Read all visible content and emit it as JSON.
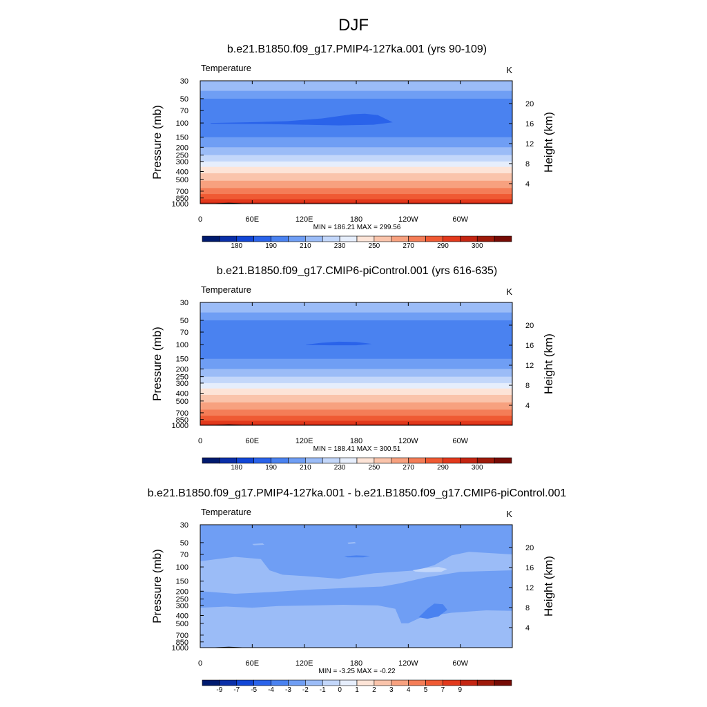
{
  "main_title": "DJF",
  "colors": {
    "temperature_scale": [
      "#001a6e",
      "#0a2fa8",
      "#1246d6",
      "#2a63ea",
      "#4a82f0",
      "#6f9ef4",
      "#9bbcf7",
      "#c3d7fa",
      "#e6eefc",
      "#fde4d7",
      "#fac4ab",
      "#f7a17f",
      "#f47d57",
      "#ef5a33",
      "#e2391c",
      "#c42512",
      "#9e1a0a",
      "#760b05"
    ],
    "difference_scale": [
      "#001a6e",
      "#0a2fa8",
      "#1246d6",
      "#2a63ea",
      "#4a82f0",
      "#6f9ef4",
      "#9bbcf7",
      "#c3d7fa",
      "#e6eefc",
      "#fde4d7",
      "#fac4ab",
      "#f7a17f",
      "#f47d57",
      "#ef5a33",
      "#e2391c",
      "#c42512",
      "#9e1a0a",
      "#760b05"
    ],
    "topography": "#000000"
  },
  "chart_data": [
    {
      "type": "heatmap",
      "title": "b.e21.B1850.f09_g17.PMIP4-127ka.001 (yrs 90-109)",
      "left_label": "Temperature",
      "right_label": "K",
      "xlabel": "",
      "ylabel": "Pressure (mb)",
      "y2label": "Height (km)",
      "x_ticks": [
        "0",
        "60E",
        "120E",
        "180",
        "120W",
        "60W"
      ],
      "x_tick_values": [
        0,
        60,
        120,
        180,
        240,
        300
      ],
      "xlim": [
        0,
        360
      ],
      "y_ticks": [
        "30",
        "50",
        "70",
        "100",
        "150",
        "200",
        "250",
        "300",
        "400",
        "500",
        "700",
        "850",
        "1000"
      ],
      "y_tick_values": [
        30,
        50,
        70,
        100,
        150,
        200,
        250,
        300,
        400,
        500,
        700,
        850,
        1000
      ],
      "ylim": [
        30,
        1000
      ],
      "y2_ticks": [
        "20",
        "16",
        "12",
        "8",
        "4"
      ],
      "y2_tick_values": [
        20,
        16,
        12,
        8,
        4
      ],
      "stats": "MIN = 186.21  MAX = 299.56",
      "min": 186.21,
      "max": 299.56,
      "colorbar_labels": [
        "180",
        "190",
        "210",
        "230",
        "250",
        "270",
        "290",
        "300"
      ],
      "bands": [
        {
          "p": 30,
          "c": 6
        },
        {
          "p": 40,
          "c": 5
        },
        {
          "p": 50,
          "c": 4
        },
        {
          "p": 150,
          "c": 5
        },
        {
          "p": 200,
          "c": 6
        },
        {
          "p": 250,
          "c": 7
        },
        {
          "p": 300,
          "c": 8
        },
        {
          "p": 350,
          "c": 9
        },
        {
          "p": 420,
          "c": 10
        },
        {
          "p": 520,
          "c": 11
        },
        {
          "p": 640,
          "c": 12
        },
        {
          "p": 760,
          "c": 13
        },
        {
          "p": 880,
          "c": 14
        },
        {
          "p": 960,
          "c": 15
        }
      ],
      "blobs": [
        {
          "pts": [
            [
              12,
              100
            ],
            [
              55,
              98
            ],
            [
              100,
              95
            ],
            [
              140,
              88
            ],
            [
              175,
              78
            ],
            [
              190,
              77
            ],
            [
              205,
              80
            ],
            [
              222,
              98
            ],
            [
              200,
              105
            ],
            [
              160,
              107
            ],
            [
              120,
              105
            ],
            [
              70,
              103
            ],
            [
              12,
              102
            ]
          ],
          "c": 3
        }
      ],
      "topo": [
        [
          0,
          1000
        ],
        [
          10,
          998
        ],
        [
          22,
          985
        ],
        [
          33,
          976
        ],
        [
          44,
          985
        ],
        [
          55,
          998
        ],
        [
          130,
          997
        ],
        [
          200,
          996
        ],
        [
          240,
          998
        ],
        [
          290,
          992
        ],
        [
          300,
          990
        ],
        [
          310,
          996
        ],
        [
          360,
          1000
        ]
      ]
    },
    {
      "type": "heatmap",
      "title": "b.e21.B1850.f09_g17.CMIP6-piControl.001 (yrs 616-635)",
      "left_label": "Temperature",
      "right_label": "K",
      "xlabel": "",
      "ylabel": "Pressure (mb)",
      "y2label": "Height (km)",
      "x_ticks": [
        "0",
        "60E",
        "120E",
        "180",
        "120W",
        "60W"
      ],
      "x_tick_values": [
        0,
        60,
        120,
        180,
        240,
        300
      ],
      "xlim": [
        0,
        360
      ],
      "y_ticks": [
        "30",
        "50",
        "70",
        "100",
        "150",
        "200",
        "250",
        "300",
        "400",
        "500",
        "700",
        "850",
        "1000"
      ],
      "y_tick_values": [
        30,
        50,
        70,
        100,
        150,
        200,
        250,
        300,
        400,
        500,
        700,
        850,
        1000
      ],
      "ylim": [
        30,
        1000
      ],
      "y2_ticks": [
        "20",
        "16",
        "12",
        "8",
        "4"
      ],
      "y2_tick_values": [
        20,
        16,
        12,
        8,
        4
      ],
      "stats": "MIN = 188.41  MAX = 300.51",
      "min": 188.41,
      "max": 300.51,
      "colorbar_labels": [
        "180",
        "190",
        "210",
        "230",
        "250",
        "270",
        "290",
        "300"
      ],
      "bands": [
        {
          "p": 30,
          "c": 6
        },
        {
          "p": 40,
          "c": 5
        },
        {
          "p": 50,
          "c": 4
        },
        {
          "p": 150,
          "c": 5
        },
        {
          "p": 200,
          "c": 6
        },
        {
          "p": 250,
          "c": 7
        },
        {
          "p": 300,
          "c": 8
        },
        {
          "p": 350,
          "c": 9
        },
        {
          "p": 420,
          "c": 10
        },
        {
          "p": 520,
          "c": 11
        },
        {
          "p": 640,
          "c": 12
        },
        {
          "p": 760,
          "c": 13
        },
        {
          "p": 880,
          "c": 14
        },
        {
          "p": 960,
          "c": 15
        }
      ],
      "blobs": [
        {
          "pts": [
            [
              122,
              100
            ],
            [
              140,
              95
            ],
            [
              160,
              92
            ],
            [
              180,
              93
            ],
            [
              198,
              98
            ],
            [
              180,
              102
            ],
            [
              150,
              102
            ],
            [
              122,
              101
            ]
          ],
          "c": 3
        }
      ],
      "topo": [
        [
          0,
          1000
        ],
        [
          10,
          998
        ],
        [
          22,
          985
        ],
        [
          33,
          976
        ],
        [
          44,
          985
        ],
        [
          55,
          998
        ],
        [
          130,
          997
        ],
        [
          200,
          996
        ],
        [
          240,
          998
        ],
        [
          290,
          992
        ],
        [
          300,
          990
        ],
        [
          310,
          996
        ],
        [
          360,
          1000
        ]
      ]
    },
    {
      "type": "heatmap",
      "title": "b.e21.B1850.f09_g17.PMIP4-127ka.001 - b.e21.B1850.f09_g17.CMIP6-piControl.001",
      "left_label": "Temperature",
      "right_label": "K",
      "xlabel": "",
      "ylabel": "Pressure (mb)",
      "y2label": "Height (km)",
      "x_ticks": [
        "0",
        "60E",
        "120E",
        "180",
        "120W",
        "60W"
      ],
      "x_tick_values": [
        0,
        60,
        120,
        180,
        240,
        300
      ],
      "xlim": [
        0,
        360
      ],
      "y_ticks": [
        "30",
        "50",
        "70",
        "100",
        "150",
        "200",
        "250",
        "300",
        "400",
        "500",
        "700",
        "850",
        "1000"
      ],
      "y_tick_values": [
        30,
        50,
        70,
        100,
        150,
        200,
        250,
        300,
        400,
        500,
        700,
        850,
        1000
      ],
      "ylim": [
        30,
        1000
      ],
      "y2_ticks": [
        "20",
        "16",
        "12",
        "8",
        "4"
      ],
      "y2_tick_values": [
        20,
        16,
        12,
        8,
        4
      ],
      "stats": "MIN =  -3.25  MAX =  -0.22",
      "min": -3.25,
      "max": -0.22,
      "colorbar_labels": [
        "-9",
        "-7",
        "-5",
        "-4",
        "-3",
        "-2",
        "-1",
        "0",
        "1",
        "2",
        "3",
        "4",
        "5",
        "7",
        "9"
      ],
      "bands": [
        {
          "p": 30,
          "c": 5
        }
      ],
      "blobs": [
        {
          "pts": [
            [
              0,
              320
            ],
            [
              30,
              310
            ],
            [
              60,
              320
            ],
            [
              90,
              305
            ],
            [
              130,
              300
            ],
            [
              165,
              295
            ],
            [
              205,
              300
            ],
            [
              225,
              330
            ],
            [
              232,
              500
            ],
            [
              240,
              500
            ],
            [
              255,
              420
            ],
            [
              290,
              370
            ],
            [
              330,
              345
            ],
            [
              360,
              350
            ],
            [
              360,
              1000
            ],
            [
              0,
              1000
            ]
          ],
          "c": 6
        },
        {
          "pts": [
            [
              0,
              200
            ],
            [
              40,
              215
            ],
            [
              80,
              205
            ],
            [
              130,
              190
            ],
            [
              180,
              180
            ],
            [
              210,
              175
            ],
            [
              230,
              160
            ],
            [
              260,
              135
            ],
            [
              300,
              115
            ],
            [
              360,
              110
            ],
            [
              360,
              70
            ],
            [
              310,
              65
            ],
            [
              290,
              72
            ],
            [
              270,
              95
            ],
            [
              250,
              110
            ],
            [
              200,
              120
            ],
            [
              160,
              140
            ],
            [
              120,
              130
            ],
            [
              95,
              125
            ],
            [
              80,
              110
            ],
            [
              70,
              80
            ],
            [
              40,
              75
            ],
            [
              0,
              85
            ]
          ],
          "c": 6
        },
        {
          "pts": [
            [
              245,
              110
            ],
            [
              260,
              103
            ],
            [
              275,
              100
            ],
            [
              285,
              106
            ],
            [
              278,
              115
            ],
            [
              260,
              116
            ],
            [
              248,
              114
            ]
          ],
          "c": 7
        },
        {
          "pts": [
            [
              252,
              420
            ],
            [
              262,
              330
            ],
            [
              270,
              285
            ],
            [
              280,
              290
            ],
            [
              285,
              340
            ],
            [
              275,
              410
            ],
            [
              262,
              440
            ]
          ],
          "c": 4
        },
        {
          "pts": [
            [
              166,
              74
            ],
            [
              180,
              72
            ],
            [
              196,
              73
            ],
            [
              188,
              76
            ],
            [
              170,
              76
            ]
          ],
          "c": 4
        },
        {
          "pts": [
            [
              60,
              52
            ],
            [
              72,
              51
            ],
            [
              74,
              53
            ],
            [
              62,
              54
            ]
          ],
          "c": 6
        },
        {
          "pts": [
            [
              170,
              50
            ],
            [
              178,
              49
            ],
            [
              180,
              51
            ],
            [
              171,
              52
            ]
          ],
          "c": 6
        },
        {
          "pts": [
            [
              12,
              780
            ],
            [
              22,
              770
            ],
            [
              28,
              780
            ],
            [
              18,
              790
            ]
          ],
          "c": 6
        },
        {
          "pts": [
            [
              288,
              850
            ],
            [
              294,
              840
            ],
            [
              297,
              850
            ],
            [
              291,
              860
            ]
          ],
          "c": 6
        }
      ],
      "topo": [
        [
          0,
          1000
        ],
        [
          10,
          998
        ],
        [
          22,
          985
        ],
        [
          33,
          976
        ],
        [
          44,
          985
        ],
        [
          55,
          998
        ],
        [
          130,
          997
        ],
        [
          200,
          996
        ],
        [
          240,
          998
        ],
        [
          290,
          992
        ],
        [
          300,
          990
        ],
        [
          310,
          996
        ],
        [
          360,
          1000
        ]
      ]
    }
  ]
}
